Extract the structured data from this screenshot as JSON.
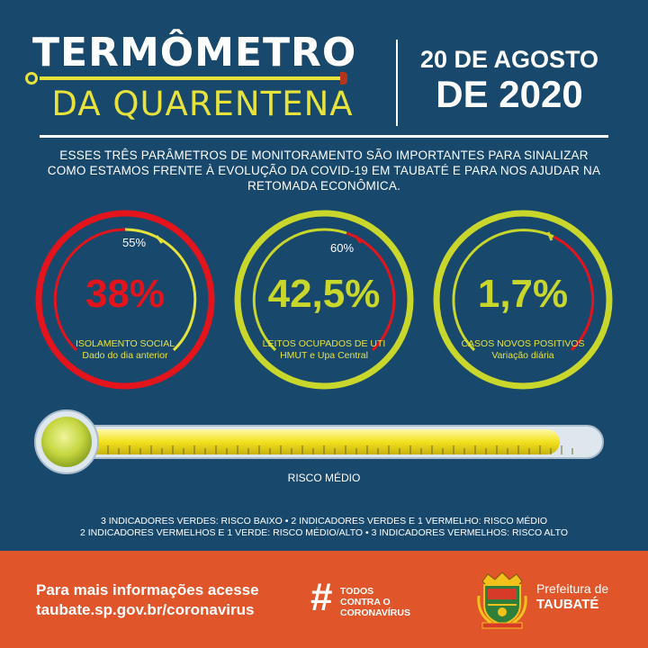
{
  "header": {
    "title_line1": "TERMÔMETRO",
    "title_line2": "DA QUARENTENA",
    "date_line1": "20 DE AGOSTO",
    "date_line2": "DE 2020"
  },
  "intro": "ESSES TRÊS PARÂMETROS DE MONITORAMENTO SÃO IMPORTANTES PARA SINALIZAR COMO ESTAMOS FRENTE À EVOLUÇÃO DA COVID-19 EM TAUBATÉ E PARA NOS AJUDAR NA RETOMADA ECONÔMICA.",
  "gauges": [
    {
      "value": "38%",
      "reference": "55%",
      "label_line1": "ISOLAMENTO SOCIAL",
      "label_line2": "Dado do dia anterior",
      "ring_color": "#e3141b",
      "value_color": "#e3141b",
      "status": "red"
    },
    {
      "value": "42,5%",
      "reference": "60%",
      "label_line1": "LEITOS OCUPADOS DE UTI",
      "label_line2": "HMUT e Upa Central",
      "ring_color": "#c9d62c",
      "value_color": "#c9d62c",
      "status": "green"
    },
    {
      "value": "1,7%",
      "reference": "",
      "label_line1": "CASOS NOVOS POSITIVOS",
      "label_line2": "Variação diária",
      "ring_color": "#c9d62c",
      "value_color": "#c9d62c",
      "status": "green"
    }
  ],
  "thermometer": {
    "risk_label": "RISCO MÉDIO",
    "level": 0.95
  },
  "legend": {
    "line1": "3 INDICADORES VERDES: RISCO BAIXO  •  2 INDICADORES VERDES E 1 VERMELHO: RISCO MÉDIO",
    "line2": "2 INDICADORES VERMELHOS E 1 VERDE: RISCO MÉDIO/ALTO  •  3 INDICADORES VERMELHOS: RISCO ALTO"
  },
  "footer": {
    "info_line1": "Para mais informações acesse",
    "info_line2": "taubate.sp.gov.br/coronavirus",
    "hashtag_symbol": "#",
    "hashtag_line1": "TODOS",
    "hashtag_line2": "CONTRA O",
    "hashtag_line3": "CORONAVÍRUS",
    "org_line1": "Prefeitura de",
    "org_line2": "TAUBATÉ"
  },
  "colors": {
    "background": "#18486b",
    "accent_yellow": "#e8e33c",
    "alert_red": "#e3141b",
    "ok_green": "#c9d62c",
    "footer": "#e0552a"
  },
  "icons": {
    "crest": "city-crest-icon"
  }
}
